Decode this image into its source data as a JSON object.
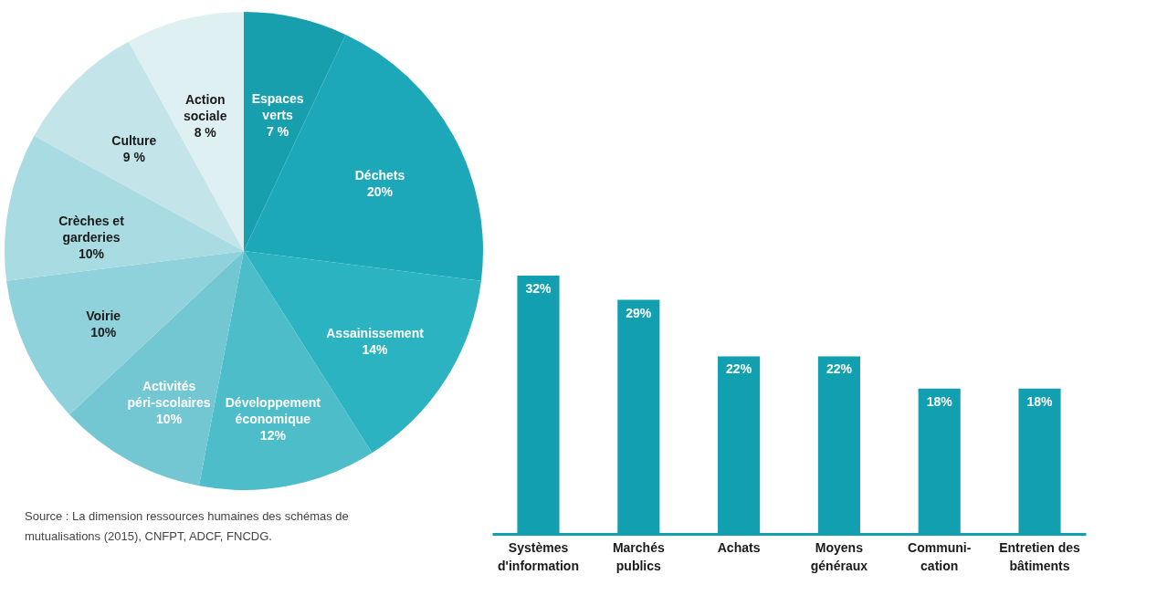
{
  "chart_data": [
    {
      "type": "pie",
      "categories": [
        "Espaces\nverts",
        "Déchets",
        "Assainissement",
        "Développement\néconomique",
        "Activités\npéri-scolaires",
        "Voirie",
        "Crèches et\ngarderies",
        "Culture",
        "Action\nsociale"
      ],
      "values": [
        7,
        20,
        14,
        12,
        10,
        10,
        10,
        9,
        8
      ],
      "value_labels": [
        "7 %",
        "20%",
        "14%",
        "12%",
        "10%",
        "10%",
        "10%",
        "9 %",
        "8 %"
      ],
      "colors": [
        "#179fae",
        "#1ca8b8",
        "#2cb3c2",
        "#4cbdc9",
        "#72c7d2",
        "#90d2db",
        "#a8dbe2",
        "#c3e4e9",
        "#dff0f3"
      ],
      "legend": false,
      "annotations": [
        "Source : La dimension ressources humaines des schémas de mutualisations (2015), CNFPT, ADCF, FNCDG."
      ]
    },
    {
      "type": "bar",
      "categories": [
        "Systèmes\nd'information",
        "Marchés\npublics",
        "Achats",
        "Moyens\ngénéraux",
        "Communi-\ncation",
        "Entretien des\nbâtiments"
      ],
      "values": [
        32,
        29,
        22,
        22,
        18,
        18
      ],
      "value_labels": [
        "32%",
        "29%",
        "22%",
        "22%",
        "18%",
        "18%"
      ],
      "color": "#12a0b0"
    }
  ]
}
